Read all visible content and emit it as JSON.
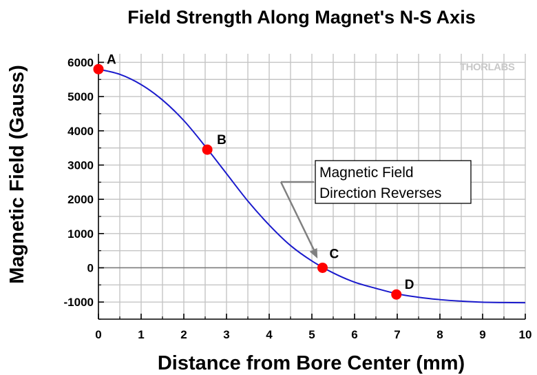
{
  "chart_data": {
    "type": "line",
    "title": "Field Strength Along Magnet's N-S Axis",
    "xlabel": "Distance from Bore Center (mm)",
    "ylabel": "Magnetic Field (Gauss)",
    "xlim": [
      0,
      10
    ],
    "ylim": [
      -1500,
      6250
    ],
    "xticks": [
      0,
      1,
      2,
      3,
      4,
      5,
      6,
      7,
      8,
      9,
      10
    ],
    "yticks": [
      -1000,
      0,
      1000,
      2000,
      3000,
      4000,
      5000,
      6000
    ],
    "grid": true,
    "series": [
      {
        "color": "#1a1acc",
        "x": [
          0,
          0.5,
          1,
          1.5,
          2,
          2.5,
          3,
          3.5,
          4,
          4.5,
          5,
          5.5,
          6,
          6.5,
          7,
          7.5,
          8,
          8.5,
          9,
          9.5,
          10
        ],
        "y": [
          5800,
          5650,
          5350,
          4900,
          4300,
          3550,
          2750,
          1950,
          1250,
          650,
          200,
          -150,
          -420,
          -600,
          -760,
          -860,
          -930,
          -975,
          -1005,
          -1015,
          -1020
        ]
      }
    ],
    "points": [
      {
        "label": "A",
        "x": 0,
        "y": 5800
      },
      {
        "label": "B",
        "x": 2.55,
        "y": 3450
      },
      {
        "label": "C",
        "x": 5.25,
        "y": 0
      },
      {
        "label": "D",
        "x": 6.98,
        "y": -780
      }
    ],
    "point_color": "#ff0000",
    "annotation": {
      "lines": [
        "Magnetic Field",
        "Direction Reverses"
      ],
      "target_x": 5.1,
      "target_y": 150
    },
    "logo": "THORLABS"
  }
}
